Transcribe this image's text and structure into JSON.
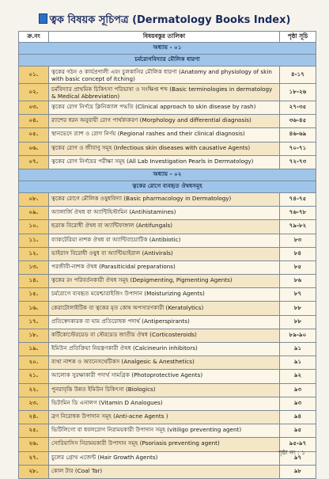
{
  "title": "ত্বক বিষয়ক সূচিপত্র (Dermatology Books Index)",
  "table": {
    "headers": {
      "sl": "ক্র.নং",
      "topic": "বিষয়বস্তুর তালিকা",
      "page": "পৃষ্ঠা সূচি"
    },
    "chapter1": {
      "label": "অধ্যায় - ০১",
      "name": "চর্মরোগবিদ্যার মৌলিক ধারণা"
    },
    "chapter2": {
      "label": "অধ্যায় - ০২",
      "name": "ত্বকের রোগে ব্যবহৃত ঔষধসমূহ"
    },
    "ch1_rows": [
      {
        "sl": "০১.",
        "topic": "ত্বকের গঠন ও কার্যপ্রণালী এবং চুলকানির মৌলিক ধারণা (Anatomy and physiology of skin with basic concept of itching)",
        "page": "৪-১৭"
      },
      {
        "sl": "০২.",
        "topic": "চর্মবিদ্যার প্রাথমিক চিকিৎসা পরিভাষা ও সংক্ষিপ্ত শব্দ (Basic terminologies in dermatology & Medical Abbreviation)",
        "page": "১৮-২৬"
      },
      {
        "sl": "০৩.",
        "topic": "ত্বকের রোগ নির্ণয়ে ক্লিনিক্যাল পদ্ধতি (Clinical approach to skin disease by rash)",
        "page": "২৭-৩৫"
      },
      {
        "sl": "০৪.",
        "topic": "র‍্যাশের ধরন অনুযায়ী রোগ পার্থক্যকরণ (Morphology and differential diagnosis)",
        "page": "৩৬-৪৫"
      },
      {
        "sl": "০৫.",
        "topic": "স্থানভেদে র‍্যাশ ও রোগ নির্ণয় (Regional rashes and their clinical diagnosis)",
        "page": "৪৬-৬৯"
      },
      {
        "sl": "০৬.",
        "topic": "ত্বকের রোগ ও জীবাণু সমূহ (Infectious skin diseases with causative Agents)",
        "page": "৭০-৭১"
      },
      {
        "sl": "০৭.",
        "topic": "ত্বকের রোগ নির্ণয়ের পরীক্ষা সমূহ (All Lab Investigation Pearls in Dermatology)",
        "page": "৭২-৭৩"
      }
    ],
    "ch2_rows": [
      {
        "sl": "০৮.",
        "topic": "ত্বকের রোগে মৌলিক ওষুধবিদ্যা (Basic pharmacology in Dermatology)",
        "page": "৭৪-৭৫"
      },
      {
        "sl": "০৯.",
        "topic": "অ্যালার্জি ঔষধ বা অ্যান্টিহিস্টামিন (Antihistamines)",
        "page": "৭৬-৭৮"
      },
      {
        "sl": "১০.",
        "topic": "ছত্রাক বিরোধী ঔষধ বা অ্যান্টিফাঙ্গাল (Antifungals)",
        "page": "৭৯-৮২"
      },
      {
        "sl": "১১.",
        "topic": "ব্যাকটেরিয়া নাশক ঔষধ বা অ্যান্টিবায়োটিক (Antibiotic)",
        "page": "৮৩"
      },
      {
        "sl": "১২.",
        "topic": "ভাইরাস বিরোধী ওষুধ বা অ্যান্টিভাইরাল (Antivirals)",
        "page": "৮৪"
      },
      {
        "sl": "১৩.",
        "topic": "পরজীবী-নাশক ঔষধ (Parasiticidal preparations)",
        "page": "৮৫"
      },
      {
        "sl": "১৪.",
        "topic": "ত্বকের রং পরিবর্তনকারী ঔষধ সমূহ (Depigmenting, Pigmenting Agents)",
        "page": "৮৬"
      },
      {
        "sl": "১৫.",
        "topic": "চর্মরোগে ব্যবহৃত ময়েশ্চারাইজিং উপাদান (Moisturizing Agents)",
        "page": "৮৭"
      },
      {
        "sl": "১৬.",
        "topic": "কেরাটোলাইটিক বা ত্বকের মৃত কোষ অপসারণকারী (Keratolytics)",
        "page": "৮৮"
      },
      {
        "sl": "১৭.",
        "topic": "প্রতিস্বেদকারক বা ঘাম প্রতিরোধক পদার্থ (Antiperspirants)",
        "page": "৮৮"
      },
      {
        "sl": "১৮.",
        "topic": "কর্টিকোস্টেরয়েড বা স্টেরয়েড জাতীয় ঔষধ (Corticosteroids)",
        "page": "৮৯-৯০"
      },
      {
        "sl": "১৯.",
        "topic": "ইমিউন প্রতিক্রিয়া নিয়ন্ত্রণকারী ঔষধ (Calcineurin inhibitors)",
        "page": "৯১"
      },
      {
        "sl": "২০.",
        "topic": "ব্যথা নাশক ও অ্যানেসথেটিকস (Analgesic & Anesthetics)",
        "page": "৯১"
      },
      {
        "sl": "২১.",
        "topic": "আলোক সুরক্ষাকারী পদার্থ সামগ্রিক (Photoprotective Agents)",
        "page": "৯২"
      },
      {
        "sl": "২২.",
        "topic": "পুনরাবৃত্তি উন্নত ইমিউন চিকিৎসা (Biologics)",
        "page": "৯৩"
      },
      {
        "sl": "২৩.",
        "topic": "ভিটামিন ডি এনালগ (Vitamin D Analogues)",
        "page": "৯৩"
      },
      {
        "sl": "২৪.",
        "topic": "ব্রণ নিরোধক উপাদান সমূহ (Anti-acne Agents )",
        "page": "৯৪"
      },
      {
        "sl": "২৫.",
        "topic": "ভিটিলিগো বা ধবলরোগ নিরাময়কারী উপাদান সমূহ (vitiligo preventing agent)",
        "page": "৯৫"
      },
      {
        "sl": "২৬.",
        "topic": "সোরিয়াসিস নিরাময়কারী উপাদান সমূহ (Psoriasis preventing agent)",
        "page": "৯৫-৯৭"
      },
      {
        "sl": "২৭.",
        "topic": "চুলের গ্রোথ এজেন্ট (Hair Growth Agents)",
        "page": "৯৭"
      },
      {
        "sl": "২৮.",
        "topic": "কোল টার (Coal Tar)",
        "page": "৯৮"
      }
    ]
  },
  "footer": {
    "page_label": "পৃষ্ঠা নং : ১"
  }
}
